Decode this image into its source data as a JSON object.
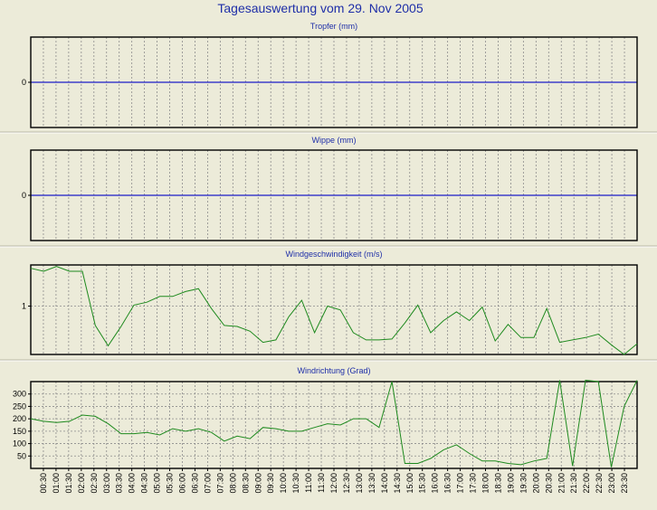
{
  "title": "Tagesauswertung vom 29. Nov 2005",
  "colors": {
    "background": "#ecebd9",
    "title": "#1f2fa8",
    "zero_line": "#1c1cc8",
    "series": "#1e8a1e",
    "grid": "#8c8c8c"
  },
  "chart_data": [
    {
      "type": "line",
      "title": "Tropfer (mm)",
      "yticks": [
        0
      ],
      "ylim": [
        -1,
        1
      ],
      "x": [],
      "values": [],
      "grid": true
    },
    {
      "type": "line",
      "title": "Wippe (mm)",
      "yticks": [
        0
      ],
      "ylim": [
        -1,
        1
      ],
      "x": [],
      "values": [],
      "grid": true
    },
    {
      "type": "line",
      "title": "Windgeschwindigkeit (m/s)",
      "yticks": [
        1
      ],
      "ylim": [
        0,
        1.85
      ],
      "x": [
        "00:00",
        "00:30",
        "01:00",
        "01:30",
        "02:00",
        "02:30",
        "03:00",
        "03:30",
        "04:00",
        "04:30",
        "05:00",
        "05:30",
        "06:00",
        "06:30",
        "07:00",
        "07:30",
        "08:00",
        "08:30",
        "09:00",
        "09:30",
        "10:00",
        "10:30",
        "11:00",
        "11:30",
        "12:00",
        "12:30",
        "13:00",
        "13:30",
        "14:00",
        "14:30",
        "15:00",
        "15:30",
        "16:00",
        "16:30",
        "17:00",
        "17:30",
        "18:00",
        "18:30",
        "19:00",
        "19:30",
        "20:00",
        "20:30",
        "21:00",
        "21:30",
        "22:00",
        "22:30",
        "23:00",
        "23:30"
      ],
      "values": [
        1.78,
        1.72,
        1.82,
        1.72,
        1.72,
        0.6,
        0.18,
        0.58,
        1.02,
        1.08,
        1.2,
        1.2,
        1.3,
        1.36,
        0.95,
        0.6,
        0.58,
        0.48,
        0.25,
        0.3,
        0.78,
        1.12,
        0.45,
        1.0,
        0.92,
        0.45,
        0.3,
        0.3,
        0.32,
        0.65,
        1.02,
        0.45,
        0.7,
        0.88,
        0.7,
        0.98,
        0.28,
        0.62,
        0.35,
        0.35,
        0.95,
        0.25,
        0.3,
        0.35,
        0.42,
        0.2,
        0.0,
        0.22
      ],
      "grid": true
    },
    {
      "type": "line",
      "title": "Windrichtung (Grad)",
      "yticks": [
        50,
        100,
        150,
        200,
        250,
        300
      ],
      "ylim": [
        0,
        350
      ],
      "x": [
        "00:00",
        "00:30",
        "01:00",
        "01:30",
        "02:00",
        "02:30",
        "03:00",
        "03:30",
        "04:00",
        "04:30",
        "05:00",
        "05:30",
        "06:00",
        "06:30",
        "07:00",
        "07:30",
        "08:00",
        "08:30",
        "09:00",
        "09:30",
        "10:00",
        "10:30",
        "11:00",
        "11:30",
        "12:00",
        "12:30",
        "13:00",
        "13:30",
        "14:00",
        "14:30",
        "15:00",
        "15:30",
        "16:00",
        "16:30",
        "17:00",
        "17:30",
        "18:00",
        "18:30",
        "19:00",
        "19:30",
        "20:00",
        "20:30",
        "21:00",
        "21:30",
        "22:00",
        "22:30",
        "23:00",
        "23:30"
      ],
      "values": [
        200,
        190,
        185,
        190,
        215,
        210,
        180,
        140,
        140,
        145,
        135,
        160,
        150,
        160,
        145,
        110,
        130,
        120,
        165,
        160,
        150,
        150,
        165,
        180,
        175,
        200,
        200,
        165,
        350,
        20,
        20,
        40,
        75,
        95,
        60,
        30,
        30,
        20,
        15,
        30,
        40,
        355,
        10,
        355,
        350,
        5,
        250,
        355
      ],
      "grid": true
    }
  ],
  "x_tick_labels": [
    "00:30",
    "01:00",
    "01:30",
    "02:00",
    "02:30",
    "03:00",
    "03:30",
    "04:00",
    "04:30",
    "05:00",
    "05:30",
    "06:00",
    "06:30",
    "07:00",
    "07:30",
    "08:00",
    "08:30",
    "09:00",
    "09:30",
    "10:00",
    "10:30",
    "11:00",
    "11:30",
    "12:00",
    "12:30",
    "13:00",
    "13:30",
    "14:00",
    "14:30",
    "15:00",
    "15:30",
    "16:00",
    "16:30",
    "17:00",
    "17:30",
    "18:00",
    "18:30",
    "19:00",
    "19:30",
    "20:00",
    "20:30",
    "21:00",
    "21:30",
    "22:00",
    "22:30",
    "23:00",
    "23:30"
  ]
}
